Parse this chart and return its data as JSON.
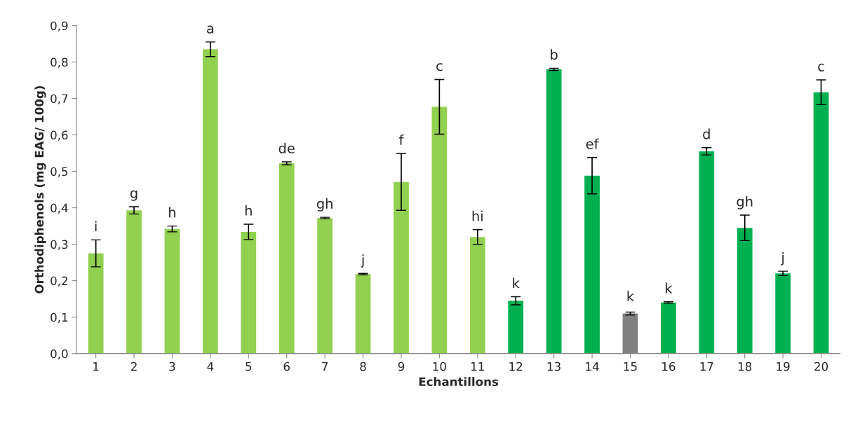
{
  "chart_data": {
    "type": "bar",
    "xlabel": "Echantillons",
    "ylabel": "Orthodiphenols (mg EAG/ 100g)",
    "categories": [
      "1",
      "2",
      "3",
      "4",
      "5",
      "6",
      "7",
      "8",
      "9",
      "10",
      "11",
      "12",
      "13",
      "14",
      "15",
      "16",
      "17",
      "18",
      "19",
      "20"
    ],
    "values": [
      0.275,
      0.393,
      0.342,
      0.835,
      0.334,
      0.522,
      0.372,
      0.218,
      0.471,
      0.677,
      0.32,
      0.145,
      0.78,
      0.488,
      0.11,
      0.14,
      0.555,
      0.345,
      0.22,
      0.717
    ],
    "errors": [
      0.037,
      0.01,
      0.008,
      0.02,
      0.021,
      0.004,
      0.002,
      0.002,
      0.078,
      0.075,
      0.02,
      0.011,
      0.003,
      0.05,
      0.004,
      0.002,
      0.01,
      0.035,
      0.006,
      0.034
    ],
    "colors": [
      "#92d050",
      "#92d050",
      "#92d050",
      "#92d050",
      "#92d050",
      "#92d050",
      "#92d050",
      "#92d050",
      "#92d050",
      "#92d050",
      "#92d050",
      "#00b050",
      "#00b050",
      "#00b050",
      "#808080",
      "#00b050",
      "#00b050",
      "#00b050",
      "#00b050",
      "#00b050"
    ],
    "ylim": [
      0,
      0.9
    ],
    "yticks": [
      {
        "value": 0,
        "label": "0,0"
      },
      {
        "value": 0.1,
        "label": "0,1"
      },
      {
        "value": 0.2,
        "label": "0,2"
      },
      {
        "value": 0.3,
        "label": "0,3"
      },
      {
        "value": 0.4,
        "label": "0,4"
      },
      {
        "value": 0.5,
        "label": "0,5"
      },
      {
        "value": 0.6,
        "label": "0,6"
      },
      {
        "value": 0.7,
        "label": "0,7"
      },
      {
        "value": 0.8,
        "label": "0,8"
      },
      {
        "value": 0.9,
        "label": "0,9"
      }
    ],
    "grid": false,
    "annotations": [
      {
        "text": "i",
        "x": "1",
        "y": 0.312
      },
      {
        "text": "g",
        "x": "2",
        "y": 0.403
      },
      {
        "text": "h",
        "x": "3",
        "y": 0.35
      },
      {
        "text": "a",
        "x": "4",
        "y": 0.855
      },
      {
        "text": "h",
        "x": "5",
        "y": 0.355
      },
      {
        "text": "de",
        "x": "6",
        "y": 0.526
      },
      {
        "text": "gh",
        "x": "7",
        "y": 0.374
      },
      {
        "text": "j",
        "x": "8",
        "y": 0.22
      },
      {
        "text": "f",
        "x": "9",
        "y": 0.549
      },
      {
        "text": "c",
        "x": "10",
        "y": 0.752
      },
      {
        "text": "hi",
        "x": "11",
        "y": 0.34
      },
      {
        "text": "k",
        "x": "12",
        "y": 0.156
      },
      {
        "text": "b",
        "x": "13",
        "y": 0.783
      },
      {
        "text": "ef",
        "x": "14",
        "y": 0.538
      },
      {
        "text": "k",
        "x": "15",
        "y": 0.12
      },
      {
        "text": "k",
        "x": "16",
        "y": 0.142
      },
      {
        "text": "d",
        "x": "17",
        "y": 0.565
      },
      {
        "text": "gh",
        "x": "18",
        "y": 0.38
      },
      {
        "text": "j",
        "x": "19",
        "y": 0.226
      },
      {
        "text": "c",
        "x": "20",
        "y": 0.751
      }
    ]
  }
}
